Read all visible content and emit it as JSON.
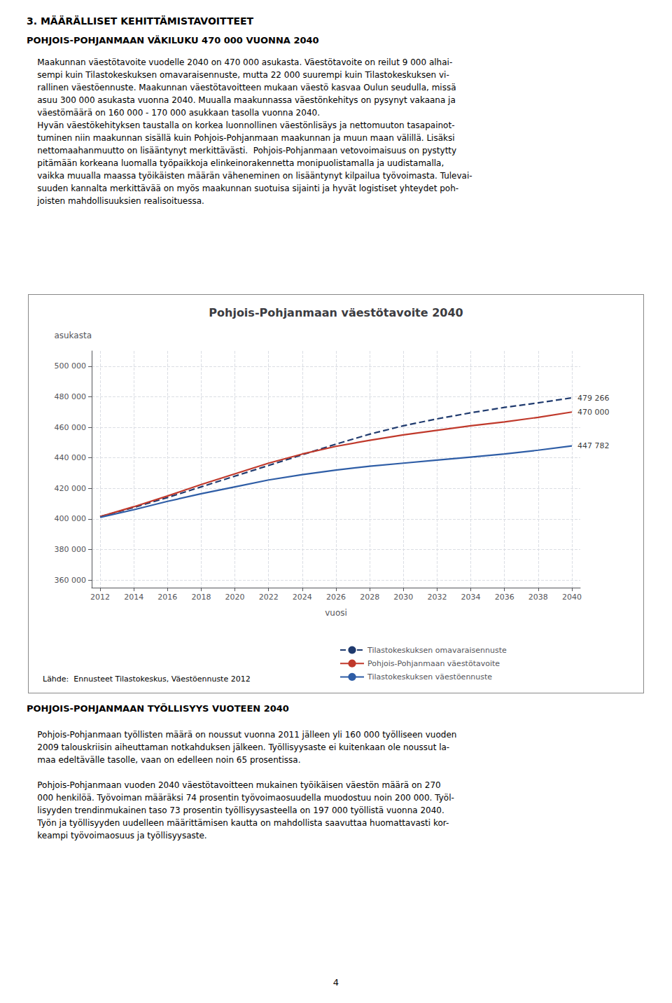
{
  "page": {
    "heading1": "3. MÄÄRÄLLISET KEHITTÄMISTAVOITTEET",
    "heading2": "POHJOIS-POHJANMAAN VÄKILUKU 470 000 VUONNA 2040",
    "body1_lines": [
      "    Maakunnan väestötavoite vuodelle 2040 on 470 000 asukasta. Väestötavoite on reilut 9 000 alhai-",
      "    sempi kuin Tilastokeskuksen omavaraisennuste, mutta 22 000 suurempi kuin Tilastokeskuksen vi-",
      "    rallinen väestöennuste. Maakunnan väestötavoitteen mukaan väestö kasvaa Oulun seudulla, missä",
      "    asuu 300 000 asukasta vuonna 2040. Muualla maakunnassa väestönkehitys on pysynyt vakaana ja",
      "    väestömäärä on 160 000 - 170 000 asukkaan tasolla vuonna 2040.",
      "    Hyvän väestökehityksen taustalla on korkea luonnollinen väestönlisäys ja nettomuuton tasapainot-",
      "    tuminen niin maakunnan sisällä kuin Pohjois-Pohjanmaan maakunnan ja muun maan välillä. Lisäksi",
      "    nettomaahanmuutto on lisääntynyt merkittävästi.  Pohjois-Pohjanmaan vetovoimaisuus on pystytty",
      "    pitämään korkeana luomalla työpaikkoja elinkeinorakennetta monipuolistamalla ja uudistamalla,",
      "    vaikka muualla maassa työikäisten määrän väheneminen on lisääntynyt kilpailua työvoimasta. Tulevai-",
      "    suuden kannalta merkittävää on myös maakunnan suotuisa sijainti ja hyvät logistiset yhteydet poh-",
      "    joisten mahdollisuuksien realisoituessa."
    ],
    "heading3": "POHJOIS-POHJANMAAN TYÖLLISYYS VUOTEEN 2040",
    "body2_paragraphs": [
      [
        "    Pohjois-Pohjanmaan työllisten määrä on noussut vuonna 2011 jälleen yli 160 000 työlliseen vuoden",
        "    2009 talouskriisin aiheuttaman notkahduksen jälkeen. Työllisyysaste ei kuitenkaan ole noussut la-",
        "    maa edeltävälle tasolle, vaan on edelleen noin 65 prosentissa."
      ],
      [
        "    Pohjois-Pohjanmaan vuoden 2040 väestötavoitteen mukainen työikäisen väestön määrä on 270",
        "    000 henkilöä. Työvoiman määräksi 74 prosentin työvoimaosuudella muodostuu noin 200 000. Työl-",
        "    lisyyden trendinmukainen taso 73 prosentin työllisyysasteella on 197 000 työllistä vuonna 2040.",
        "    Työn ja työllisyyden uudelleen määrittämisen kautta on mahdollista saavuttaa huomattavasti kor-",
        "    keampi työvoimaosuus ja työllisyysaste."
      ]
    ],
    "page_number": "4"
  },
  "chart_data": {
    "type": "line",
    "title": "Pohjois-Pohjanmaan väestötavoite 2040",
    "x_label": "vuosi",
    "y_label": "asukasta",
    "source": "Lähde:  Ennusteet Tilastokeskus, Väestöennuste 2012",
    "x": [
      2012,
      2014,
      2016,
      2018,
      2020,
      2022,
      2024,
      2026,
      2028,
      2030,
      2032,
      2034,
      2036,
      2038,
      2040
    ],
    "series": [
      {
        "name": "Tilastokeskuksen omavaraisennuste",
        "color": "#1F3A6E",
        "line_style": "dashed",
        "values": [
          401500,
          407500,
          414000,
          421000,
          428000,
          435000,
          442000,
          449000,
          455500,
          461000,
          465500,
          469500,
          473000,
          476000,
          479266
        ]
      },
      {
        "name": "Pohjois-Pohjanmaan väestötavoite",
        "color": "#C0392B",
        "line_style": "solid",
        "values": [
          401500,
          408000,
          415000,
          422500,
          429500,
          436500,
          442500,
          447500,
          451500,
          455000,
          458000,
          461000,
          463500,
          466500,
          470000
        ]
      },
      {
        "name": "Tilastokeskuksen väestöennuste",
        "color": "#2E5DA6",
        "line_style": "solid",
        "values": [
          401000,
          406000,
          411500,
          416500,
          421000,
          425500,
          429000,
          432000,
          434500,
          436500,
          438500,
          440500,
          442500,
          445000,
          447782
        ]
      }
    ],
    "annotations": [
      {
        "x": 2040,
        "y": 479266,
        "text": "479 266"
      },
      {
        "x": 2040,
        "y": 470000,
        "text": "470 000"
      },
      {
        "x": 2040,
        "y": 447782,
        "text": "447 782"
      }
    ],
    "xlim": [
      2011.5,
      2040.5
    ],
    "xticks": [
      2012,
      2014,
      2016,
      2018,
      2020,
      2022,
      2024,
      2026,
      2028,
      2030,
      2032,
      2034,
      2036,
      2038,
      2040
    ],
    "ylim": [
      355000,
      510000
    ],
    "yticks": [
      {
        "value": 360000,
        "label": "360 000"
      },
      {
        "value": 380000,
        "label": "380 000"
      },
      {
        "value": 400000,
        "label": "400 000"
      },
      {
        "value": 420000,
        "label": "420 000"
      },
      {
        "value": 440000,
        "label": "440 000"
      },
      {
        "value": 460000,
        "label": "460 000"
      },
      {
        "value": 480000,
        "label": "480 000"
      },
      {
        "value": 500000,
        "label": "500 000"
      }
    ],
    "grid": true,
    "legend": "bottom"
  }
}
